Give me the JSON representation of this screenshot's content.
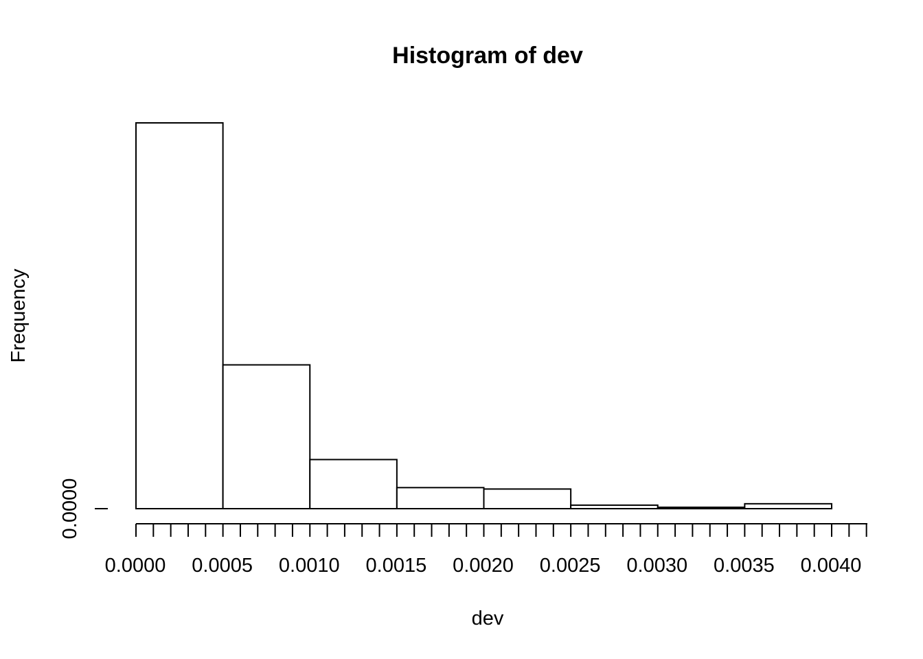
{
  "chart_data": {
    "type": "bar",
    "title": "Histogram of dev",
    "xlabel": "dev",
    "ylabel": "Frequency",
    "bins": [
      {
        "start": 0.0,
        "end": 0.0005,
        "value": 2200
      },
      {
        "start": 0.0005,
        "end": 0.001,
        "value": 820
      },
      {
        "start": 0.001,
        "end": 0.0015,
        "value": 280
      },
      {
        "start": 0.0015,
        "end": 0.002,
        "value": 120
      },
      {
        "start": 0.002,
        "end": 0.0025,
        "value": 112
      },
      {
        "start": 0.0025,
        "end": 0.003,
        "value": 20
      },
      {
        "start": 0.003,
        "end": 0.0035,
        "value": 8
      },
      {
        "start": 0.0035,
        "end": 0.004,
        "value": 28
      }
    ],
    "x_ticks": [
      "0.0000",
      "0.0005",
      "0.0010",
      "0.0015",
      "0.0020",
      "0.0025",
      "0.0030",
      "0.0035",
      "0.0040"
    ],
    "x_tick_values": [
      0.0,
      0.0005,
      0.001,
      0.0015,
      0.002,
      0.0025,
      0.003,
      0.0035,
      0.004
    ],
    "x_minor_tick_step": 0.0001,
    "xlim": [
      0.0,
      0.00415
    ],
    "y_ticks": [
      "0.0000"
    ],
    "y_tick_values": [
      0
    ],
    "ylim": [
      0,
      2200
    ],
    "grid": false,
    "colors": {
      "bar_fill": "#ffffff",
      "bar_stroke": "#000000"
    }
  }
}
